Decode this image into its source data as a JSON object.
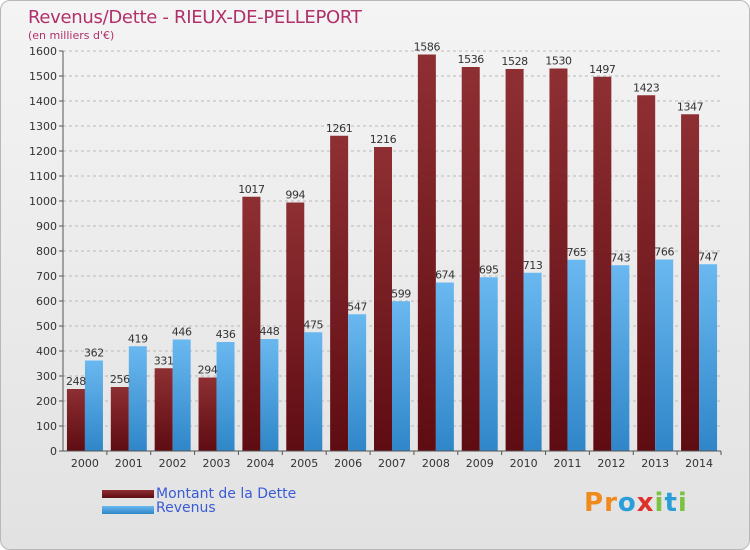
{
  "header": {
    "title": "Revenus/Dette - RIEUX-DE-PELLEPORT",
    "unit": "(en milliers d'€)"
  },
  "legend": {
    "items": [
      "Montant de la Dette",
      "Revenus"
    ]
  },
  "brand": {
    "logo_letters": [
      "P",
      "r",
      "o",
      "x",
      "i",
      "t",
      "i"
    ],
    "logo_colors": [
      "#f08a1c",
      "#f08a1c",
      "#2a9ed8",
      "#e0302a",
      "#7cc242",
      "#2a9ed8",
      "#7cc242"
    ]
  },
  "colors": {
    "debt_top": "#8e2f33",
    "debt_bottom": "#5e0c12",
    "revenue_top": "#6ab8f0",
    "revenue_bottom": "#2f86c8",
    "title": "#b0306a",
    "legend_text": "#3a5bd6"
  },
  "chart_data": {
    "type": "bar",
    "title": "Revenus/Dette - RIEUX-DE-PELLEPORT",
    "ylabel": "(en milliers d'€)",
    "xlabel": "",
    "categories": [
      "2000",
      "2001",
      "2002",
      "2003",
      "2004",
      "2005",
      "2006",
      "2007",
      "2008",
      "2009",
      "2010",
      "2011",
      "2012",
      "2013",
      "2014"
    ],
    "series": [
      {
        "name": "Montant de la Dette",
        "values": [
          248,
          256,
          331,
          294,
          1017,
          994,
          1261,
          1216,
          1586,
          1536,
          1528,
          1530,
          1497,
          1423,
          1347
        ]
      },
      {
        "name": "Revenus",
        "values": [
          362,
          419,
          446,
          436,
          448,
          475,
          547,
          599,
          674,
          695,
          713,
          765,
          743,
          766,
          747
        ]
      }
    ],
    "ylim": [
      0,
      1600
    ],
    "yticks": [
      0,
      100,
      200,
      300,
      400,
      500,
      600,
      700,
      800,
      900,
      1000,
      1100,
      1200,
      1300,
      1400,
      1500,
      1600
    ],
    "grid": true,
    "legend_position": "bottom-left"
  }
}
